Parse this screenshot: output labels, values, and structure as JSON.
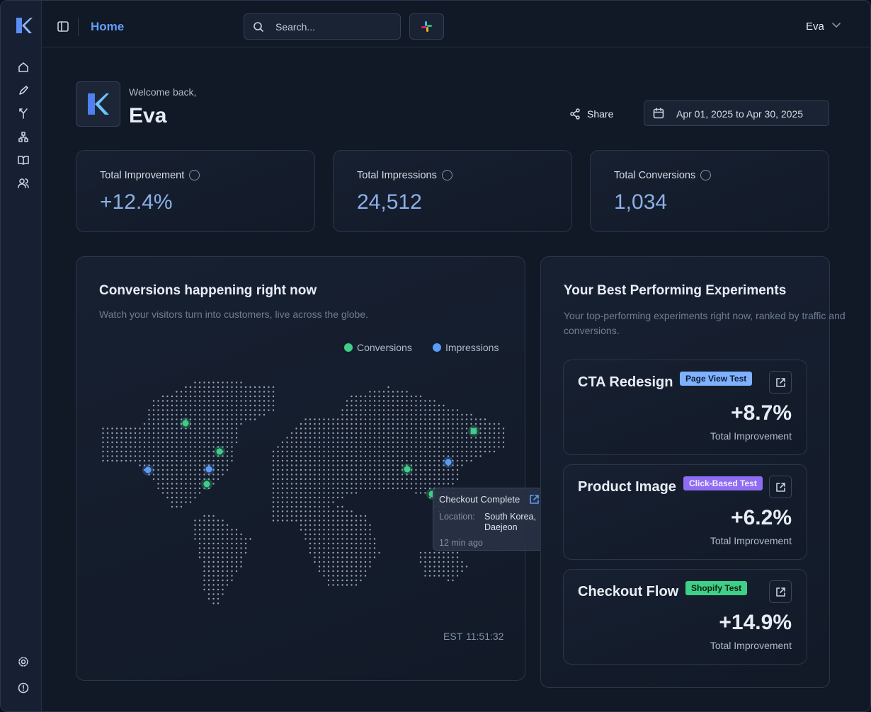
{
  "topbar": {
    "title": "Home",
    "search_placeholder": "Search...",
    "user": "Eva"
  },
  "header": {
    "greeting": "Welcome back,",
    "name": "Eva",
    "share": "Share",
    "date_range": "Apr 01, 2025 to Apr 30, 2025"
  },
  "stats": [
    {
      "label": "Total Improvement",
      "value": "+12.4%"
    },
    {
      "label": "Total Impressions",
      "value": "24,512"
    },
    {
      "label": "Total Conversions",
      "value": "1,034"
    }
  ],
  "map_card": {
    "title": "Conversions happening right now",
    "subtitle": "Watch your visitors turn into customers, live across the globe.",
    "legend": [
      "Conversions",
      "Impressions"
    ],
    "tooltip": {
      "title": "Checkout Complete",
      "location_label": "Location:",
      "location": "South Korea, Daejeon",
      "time": "12 min ago"
    },
    "timezone": "EST",
    "clock": "11:51:32"
  },
  "experiments_card": {
    "title": "Your Best Performing Experiments",
    "subtitle": "Your top-performing experiments right now, ranked by traffic and conversions.",
    "items": [
      {
        "name": "CTA Redesign",
        "tag": "Page View Test",
        "value": "+8.7%",
        "caption": "Total Improvement"
      },
      {
        "name": "Product Image",
        "tag": "Click-Based Test",
        "value": "+6.2%",
        "caption": "Total Improvement"
      },
      {
        "name": "Checkout Flow",
        "tag": "Shopify Test",
        "value": "+14.9%",
        "caption": "Total Improvement"
      }
    ]
  }
}
